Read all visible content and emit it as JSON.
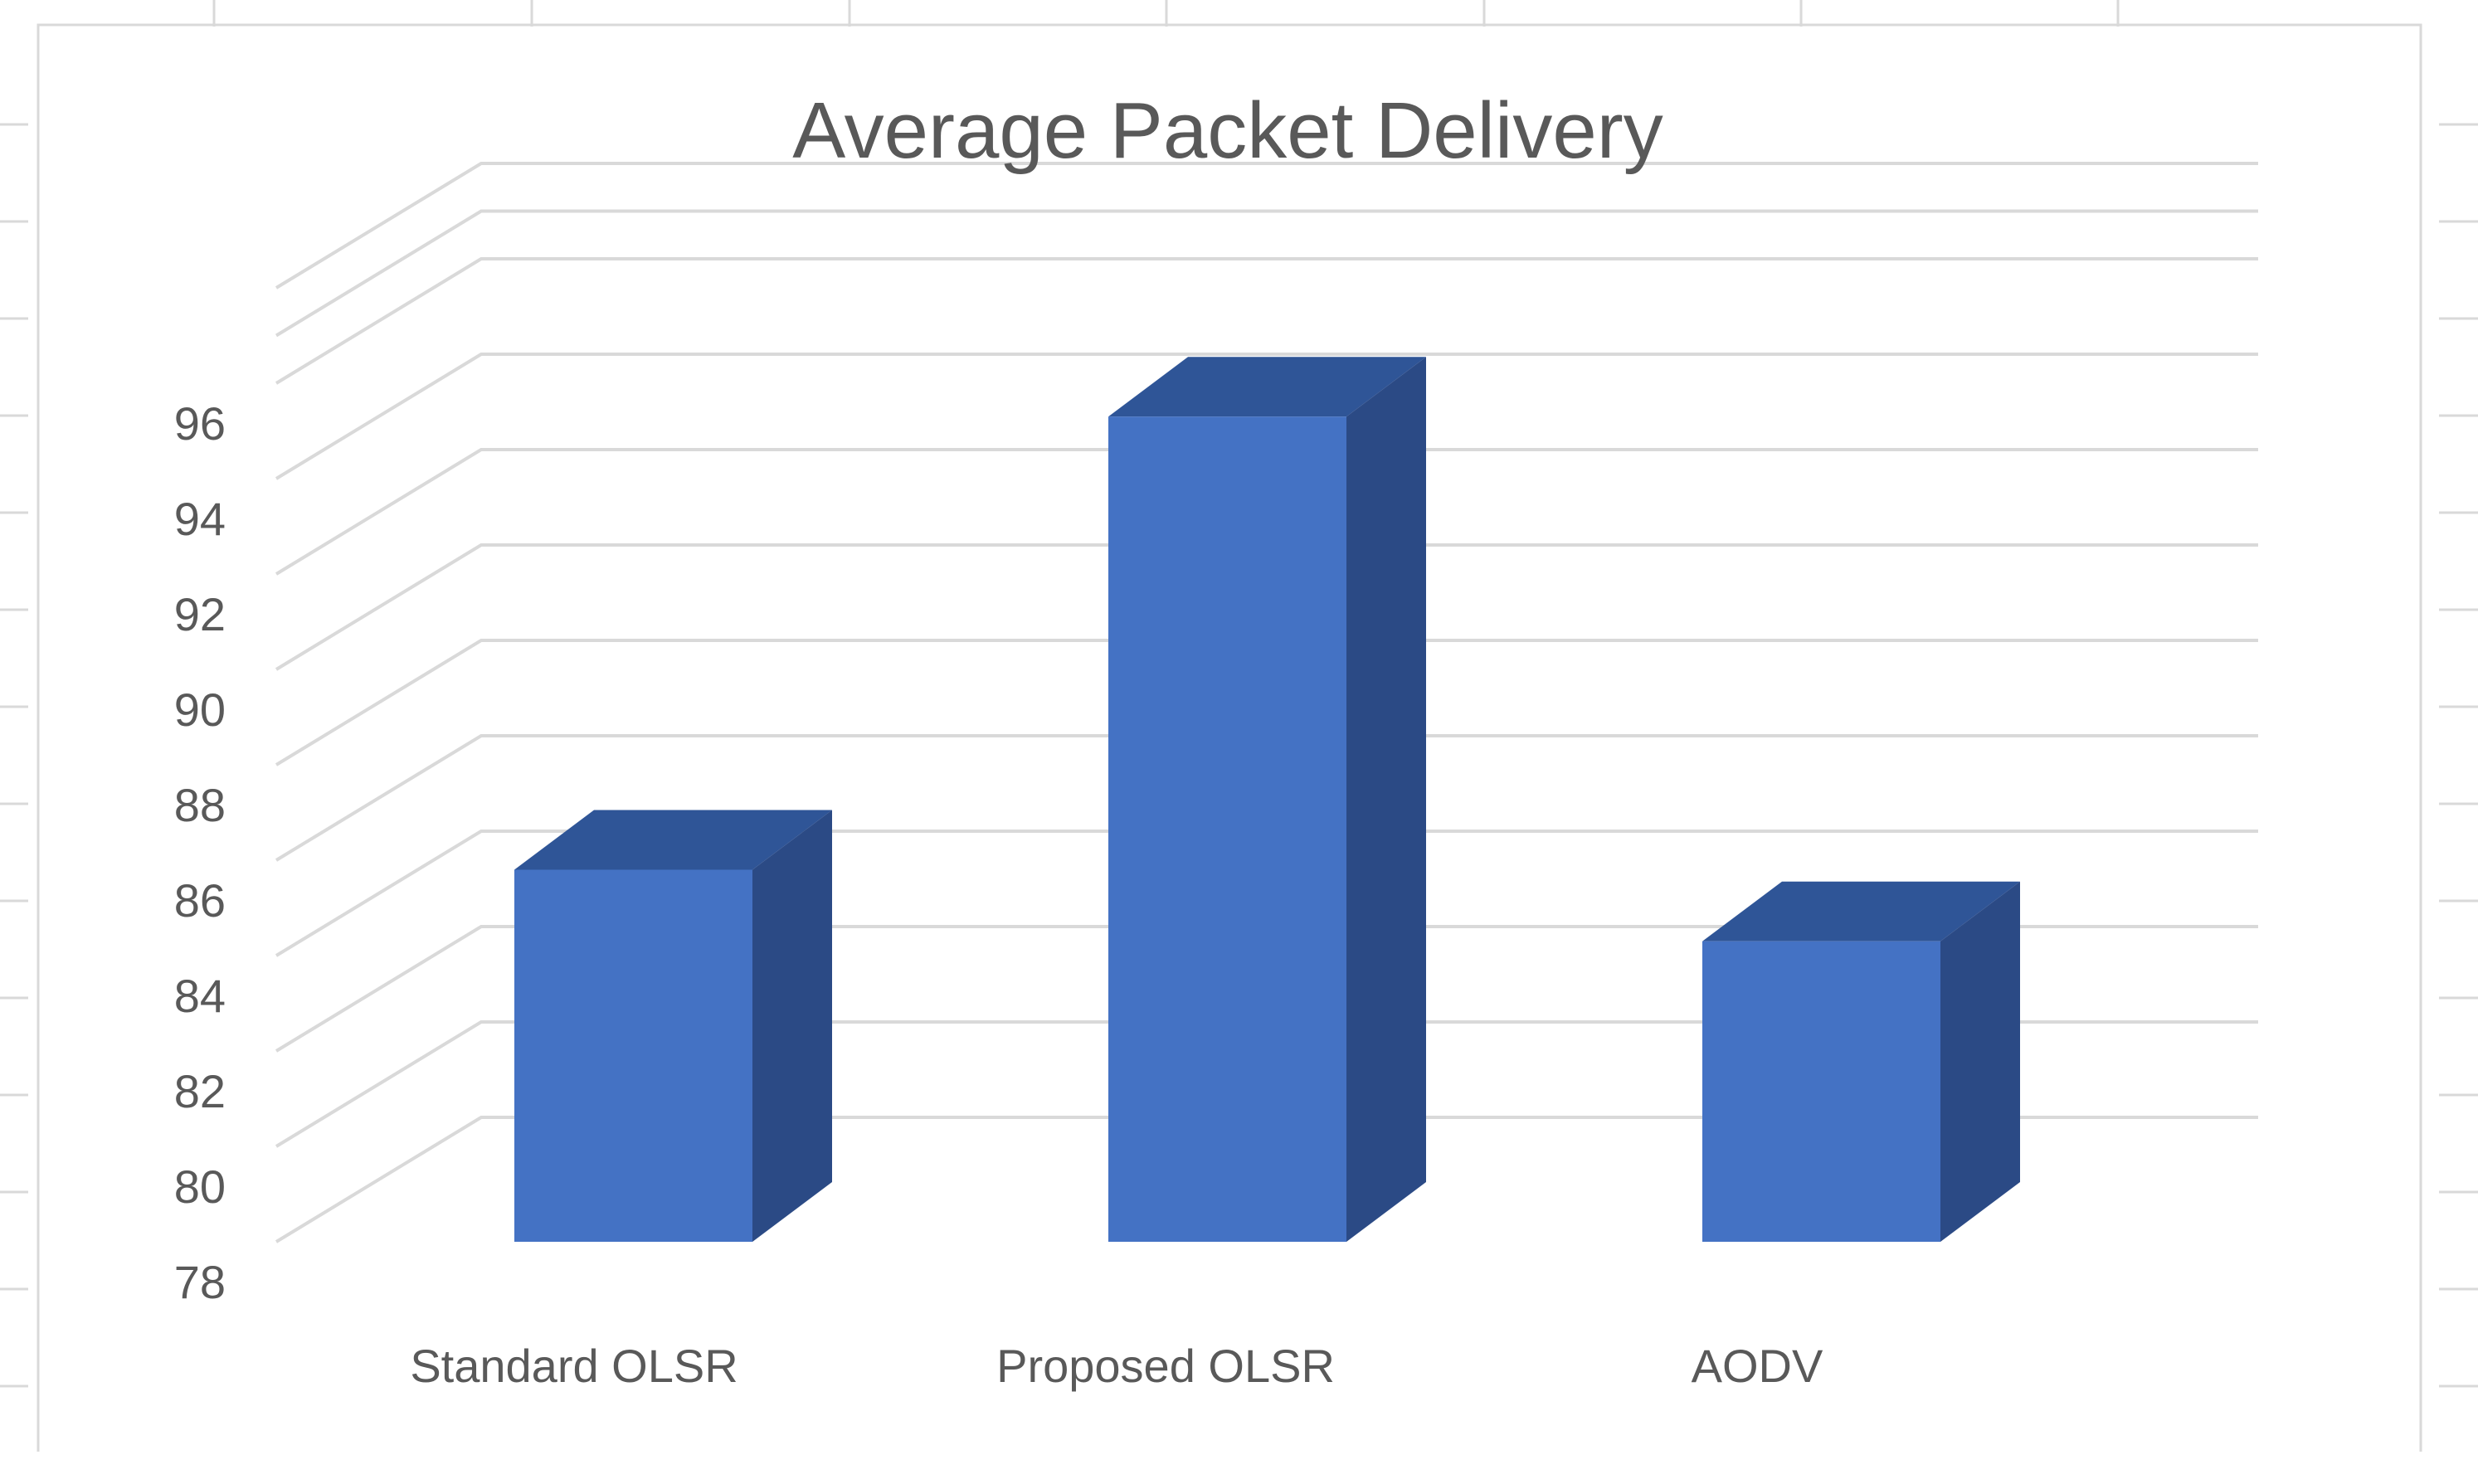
{
  "chart_data": {
    "type": "bar",
    "title": "Average Packet Delivery",
    "categories": [
      "Standard OLSR",
      "Proposed OLSR",
      "AODV"
    ],
    "values": [
      85.8,
      95.3,
      84.3
    ],
    "ylim": [
      78,
      96
    ],
    "yticks": [
      78,
      80,
      82,
      84,
      86,
      88,
      90,
      92,
      94,
      96
    ],
    "xlabel": "",
    "ylabel": "",
    "grid": true,
    "legend": "none",
    "three_d": true,
    "colors": {
      "bar_front": "#4472C4",
      "bar_side": "#2B4A85",
      "bar_top": "#2F5597",
      "gridline": "#D9D9D9",
      "text": "#595959",
      "sheet_grid": "#D9D9D9"
    }
  }
}
